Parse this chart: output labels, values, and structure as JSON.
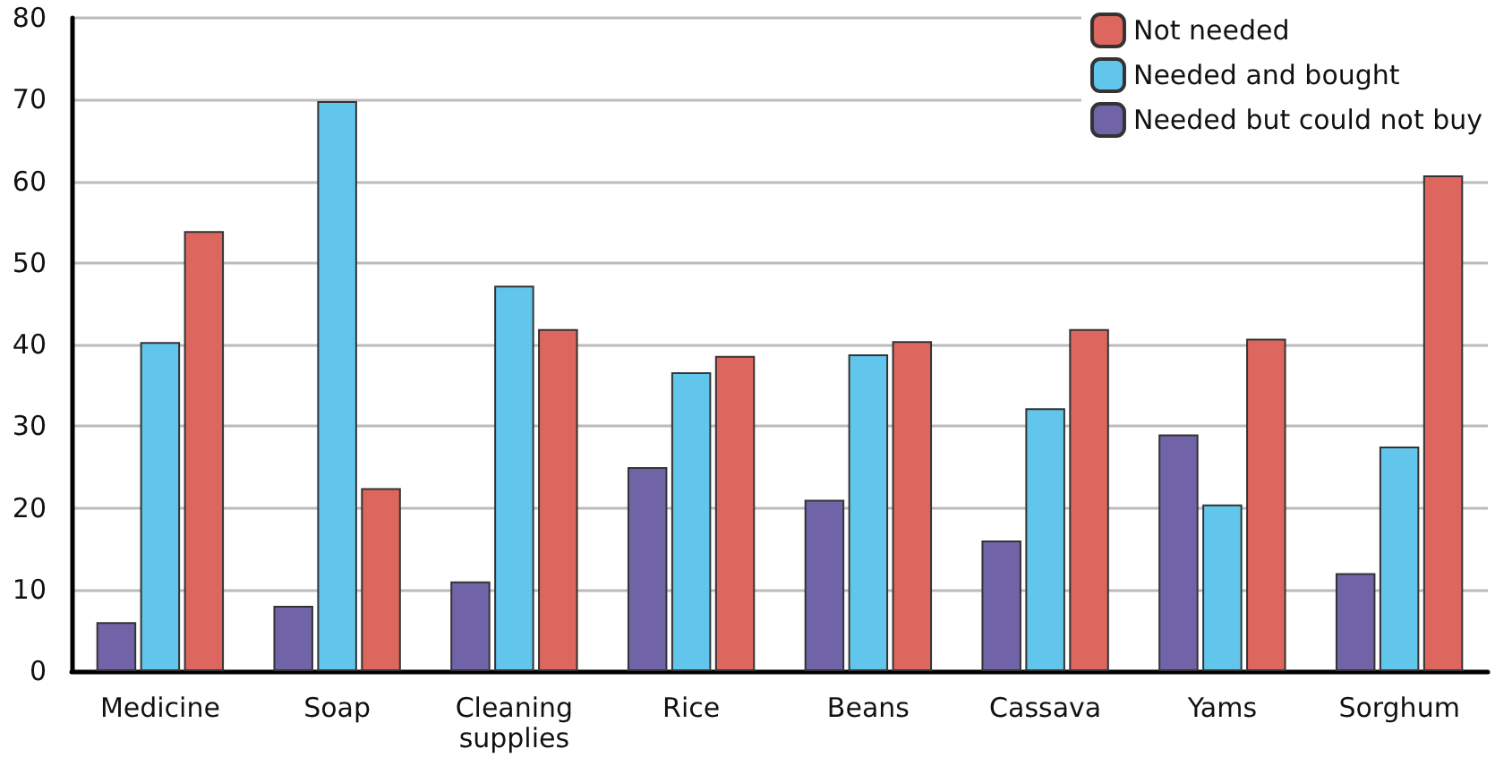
{
  "chart_data": {
    "type": "bar",
    "categories": [
      "Medicine",
      "Soap",
      "Cleaning\nsupplies",
      "Rice",
      "Beans",
      "Cassava",
      "Yams",
      "Sorghum"
    ],
    "series": [
      {
        "name": "Needed but could not buy",
        "color": "#7063a8",
        "values": [
          6,
          8,
          11,
          25,
          21,
          16,
          29,
          12
        ]
      },
      {
        "name": "Needed and bought",
        "color": "#62c5ec",
        "values": [
          40.3,
          69.8,
          47.2,
          36.6,
          38.8,
          32.2,
          20.4,
          27.5
        ]
      },
      {
        "name": "Not needed",
        "color": "#dd675e",
        "values": [
          53.9,
          22.4,
          41.9,
          38.6,
          40.4,
          41.9,
          40.7,
          60.7
        ]
      }
    ],
    "ylim": [
      0,
      80
    ],
    "yticks": [
      0,
      10,
      20,
      30,
      40,
      50,
      60,
      70,
      80
    ],
    "grid": "y",
    "legend": "top right"
  }
}
